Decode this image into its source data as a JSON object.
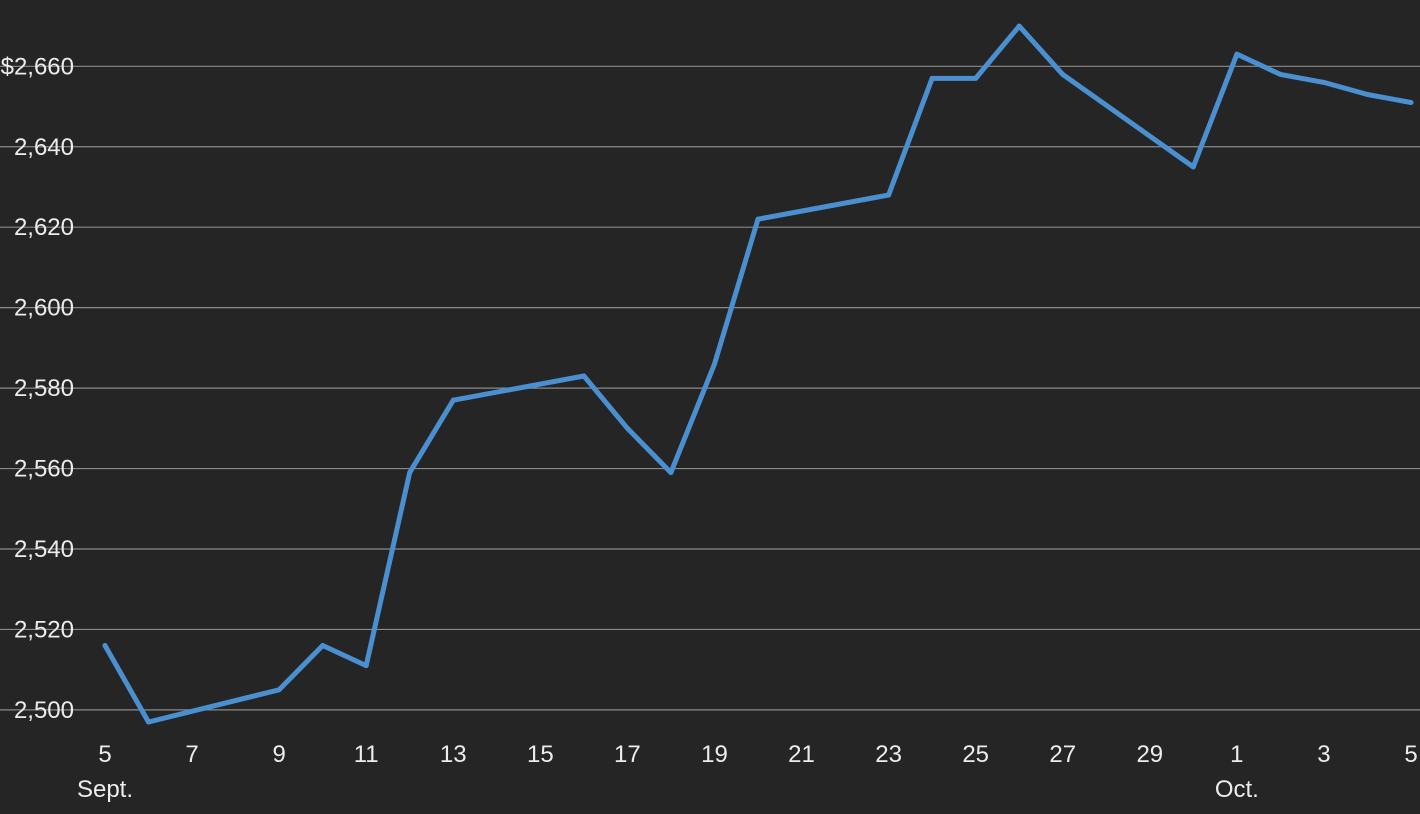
{
  "chart_data": {
    "type": "line",
    "title": "",
    "xlabel": "",
    "ylabel": "",
    "grid": true,
    "ylim": [
      2495,
      2674
    ],
    "xlim": [
      "2018-09-05",
      "2018-10-05"
    ],
    "y_ticks": [
      2500,
      2520,
      2540,
      2560,
      2580,
      2600,
      2620,
      2640,
      2660
    ],
    "y_tick_labels": [
      "2,500",
      "2,520",
      "2,540",
      "2,560",
      "2,580",
      "2,600",
      "2,620",
      "2,640",
      "$2,660"
    ],
    "x_ticks": [
      {
        "date": "2018-09-05",
        "label": "5",
        "sublabel": "Sept."
      },
      {
        "date": "2018-09-07",
        "label": "7"
      },
      {
        "date": "2018-09-09",
        "label": "9"
      },
      {
        "date": "2018-09-11",
        "label": "11"
      },
      {
        "date": "2018-09-13",
        "label": "13"
      },
      {
        "date": "2018-09-15",
        "label": "15"
      },
      {
        "date": "2018-09-17",
        "label": "17"
      },
      {
        "date": "2018-09-19",
        "label": "19"
      },
      {
        "date": "2018-09-21",
        "label": "21"
      },
      {
        "date": "2018-09-23",
        "label": "23"
      },
      {
        "date": "2018-09-25",
        "label": "25"
      },
      {
        "date": "2018-09-27",
        "label": "27"
      },
      {
        "date": "2018-09-29",
        "label": "29"
      },
      {
        "date": "2018-10-01",
        "label": "1",
        "sublabel": "Oct."
      },
      {
        "date": "2018-10-03",
        "label": "3"
      },
      {
        "date": "2018-10-05",
        "label": "5"
      }
    ],
    "series": [
      {
        "color": "#4a90d0",
        "points": [
          {
            "x": "2018-09-05",
            "y": 2516
          },
          {
            "x": "2018-09-06",
            "y": 2497
          },
          {
            "x": "2018-09-09",
            "y": 2505
          },
          {
            "x": "2018-09-10",
            "y": 2516
          },
          {
            "x": "2018-09-11",
            "y": 2511
          },
          {
            "x": "2018-09-12",
            "y": 2559
          },
          {
            "x": "2018-09-13",
            "y": 2577
          },
          {
            "x": "2018-09-16",
            "y": 2583
          },
          {
            "x": "2018-09-17",
            "y": 2570
          },
          {
            "x": "2018-09-18",
            "y": 2559
          },
          {
            "x": "2018-09-19",
            "y": 2586
          },
          {
            "x": "2018-09-20",
            "y": 2622
          },
          {
            "x": "2018-09-23",
            "y": 2628
          },
          {
            "x": "2018-09-24",
            "y": 2657
          },
          {
            "x": "2018-09-25",
            "y": 2657
          },
          {
            "x": "2018-09-26",
            "y": 2670
          },
          {
            "x": "2018-09-27",
            "y": 2658
          },
          {
            "x": "2018-09-30",
            "y": 2635
          },
          {
            "x": "2018-10-01",
            "y": 2663
          },
          {
            "x": "2018-10-02",
            "y": 2658
          },
          {
            "x": "2018-10-03",
            "y": 2656
          },
          {
            "x": "2018-10-04",
            "y": 2653
          },
          {
            "x": "2018-10-05",
            "y": 2651
          }
        ]
      }
    ]
  }
}
